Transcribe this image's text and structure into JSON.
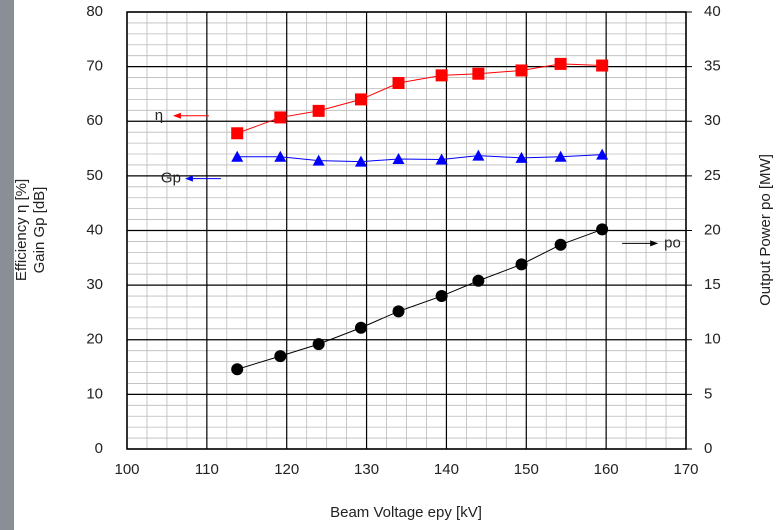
{
  "chart_data": {
    "type": "line",
    "x_label": "Beam Voltage  epy [kV]",
    "y_label": [
      "Efficiency  η [%]",
      "Gain Gp [dB]"
    ],
    "y2_label": "Output Power  po [MW]",
    "x": [
      113.8,
      119.2,
      124,
      129.3,
      134,
      139.4,
      144,
      149.4,
      154.3,
      159.5
    ],
    "series": [
      {
        "name": "η",
        "color": "#ff0000",
        "marker": "square",
        "values": [
          57.8,
          60.7,
          61.9,
          64.0,
          67.0,
          68.4,
          68.7,
          69.3,
          70.5,
          70.2
        ]
      },
      {
        "name": "Gp",
        "color": "#0000ff",
        "marker": "triangle",
        "values": [
          53.5,
          53.5,
          52.8,
          52.6,
          53.1,
          53.0,
          53.7,
          53.3,
          53.5,
          53.9
        ]
      },
      {
        "name": "po",
        "color": "#000000",
        "marker": "circle",
        "axis": "y2",
        "values": [
          7.3,
          8.5,
          9.6,
          11.1,
          12.6,
          14.0,
          15.4,
          16.9,
          18.7,
          20.1
        ]
      }
    ],
    "xlim": [
      100,
      170
    ],
    "xticks": [
      100,
      110,
      120,
      130,
      140,
      150,
      160,
      170
    ],
    "ylim": [
      0,
      80
    ],
    "yticks": [
      0,
      10,
      20,
      30,
      40,
      50,
      60,
      70,
      80
    ],
    "y2lim": [
      0,
      40
    ],
    "y2ticks": [
      0,
      5,
      10,
      15,
      20,
      25,
      30,
      35,
      40
    ],
    "grid": true,
    "minor_grid": true
  }
}
